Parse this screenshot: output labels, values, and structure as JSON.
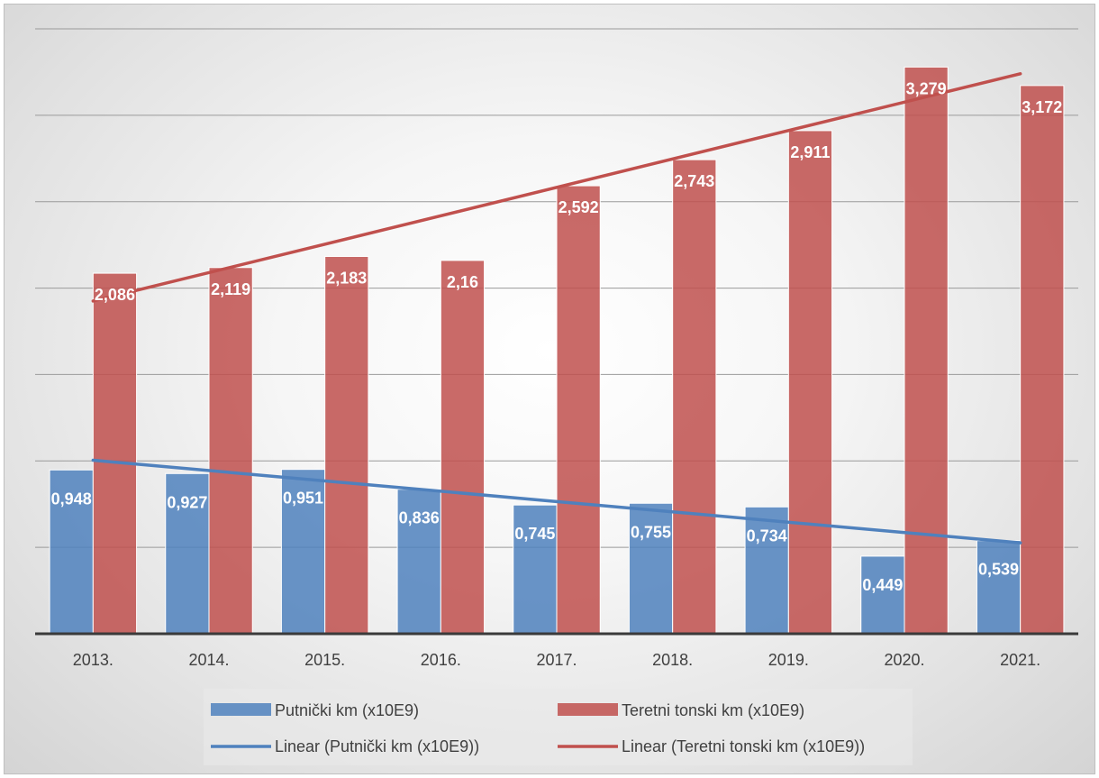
{
  "chart_data": {
    "type": "bar",
    "categories": [
      "2013.",
      "2014.",
      "2015.",
      "2016.",
      "2017.",
      "2018.",
      "2019.",
      "2020.",
      "2021."
    ],
    "series": [
      {
        "name": "Putnički km (x10E9)",
        "values": [
          0.948,
          0.927,
          0.951,
          0.836,
          0.745,
          0.755,
          0.734,
          0.449,
          0.539
        ],
        "labels": [
          "0,948",
          "0,927",
          "0,951",
          "0,836",
          "0,745",
          "0,755",
          "0,734",
          "0,449",
          "0,539"
        ],
        "color": "#4f81bd"
      },
      {
        "name": "Teretni tonski km (x10E9)",
        "values": [
          2.086,
          2.119,
          2.183,
          2.16,
          2.592,
          2.743,
          2.911,
          3.279,
          3.172
        ],
        "labels": [
          "2,086",
          "2,119",
          "2,183",
          "2,16",
          "2,592",
          "2,743",
          "2,911",
          "3,279",
          "3,172"
        ],
        "color": "#c0504d"
      }
    ],
    "trendlines": [
      {
        "name": "Linear (Putnički km (x10E9))",
        "series_index": 0,
        "color": "#4f81bd"
      },
      {
        "name": "Linear (Teretni tonski km (x10E9))",
        "series_index": 1,
        "color": "#c0504d"
      }
    ],
    "ylim": [
      0,
      3.5
    ],
    "grid": true,
    "legend_position": "bottom",
    "title": "",
    "xlabel": "",
    "ylabel": ""
  }
}
